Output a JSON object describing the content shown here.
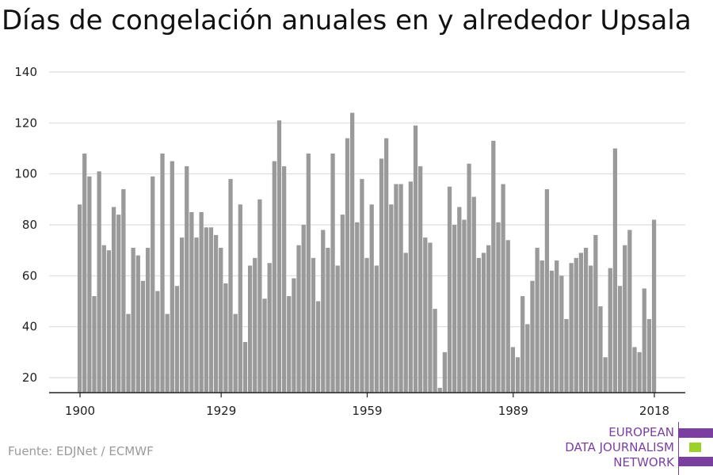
{
  "title": "Días de congelación anuales en y alrededor Upsala",
  "source": "Fuente: EDJNet / ECMWF",
  "logo": {
    "lines": [
      "EUROPEAN",
      "DATA JOURNALISM",
      "NETWORK"
    ],
    "colors": {
      "purple": "#7b3fa0",
      "green": "#9bd12a"
    }
  },
  "chart_data": {
    "type": "bar",
    "title": "Días de congelación anuales en y alrededor Upsala",
    "xlabel": "",
    "ylabel": "",
    "x_ticks": [
      1900,
      1929,
      1959,
      1989,
      2018
    ],
    "y_ticks": [
      20,
      40,
      60,
      80,
      100,
      120,
      140
    ],
    "ylim": [
      13,
      145
    ],
    "grid": true,
    "bar_color": "#9a9a9a",
    "categories": [
      1900,
      1901,
      1902,
      1903,
      1904,
      1905,
      1906,
      1907,
      1908,
      1909,
      1910,
      1911,
      1912,
      1913,
      1914,
      1915,
      1916,
      1917,
      1918,
      1919,
      1920,
      1921,
      1922,
      1923,
      1924,
      1925,
      1926,
      1927,
      1928,
      1929,
      1930,
      1931,
      1932,
      1933,
      1934,
      1935,
      1936,
      1937,
      1938,
      1939,
      1940,
      1941,
      1942,
      1943,
      1944,
      1945,
      1946,
      1947,
      1948,
      1949,
      1950,
      1951,
      1952,
      1953,
      1954,
      1955,
      1956,
      1957,
      1958,
      1959,
      1960,
      1961,
      1962,
      1963,
      1964,
      1965,
      1966,
      1967,
      1968,
      1969,
      1970,
      1971,
      1972,
      1973,
      1974,
      1975,
      1976,
      1977,
      1978,
      1979,
      1980,
      1981,
      1982,
      1983,
      1984,
      1985,
      1986,
      1987,
      1988,
      1989,
      1990,
      1991,
      1992,
      1993,
      1994,
      1995,
      1996,
      1997,
      1998,
      1999,
      2000,
      2001,
      2002,
      2003,
      2004,
      2005,
      2006,
      2007,
      2008,
      2009,
      2010,
      2011,
      2012,
      2013,
      2014,
      2015,
      2016,
      2017,
      2018
    ],
    "values": [
      88,
      108,
      99,
      52,
      101,
      72,
      70,
      87,
      84,
      94,
      45,
      71,
      68,
      58,
      71,
      99,
      54,
      108,
      45,
      105,
      56,
      75,
      103,
      85,
      75,
      85,
      79,
      79,
      76,
      71,
      57,
      98,
      45,
      88,
      34,
      64,
      67,
      90,
      51,
      65,
      105,
      121,
      103,
      52,
      59,
      72,
      80,
      108,
      67,
      50,
      78,
      71,
      108,
      64,
      84,
      114,
      124,
      81,
      98,
      67,
      88,
      64,
      106,
      114,
      88,
      96,
      96,
      69,
      97,
      119,
      103,
      75,
      73,
      47,
      16,
      30,
      95,
      80,
      87,
      82,
      104,
      91,
      67,
      69,
      72,
      113,
      81,
      96,
      74,
      32,
      28,
      52,
      41,
      58,
      71,
      66,
      94,
      62,
      66,
      60,
      43,
      65,
      67,
      69,
      71,
      64,
      76,
      48,
      28,
      63,
      110,
      56,
      72,
      78,
      32,
      30,
      55,
      43,
      82
    ]
  }
}
